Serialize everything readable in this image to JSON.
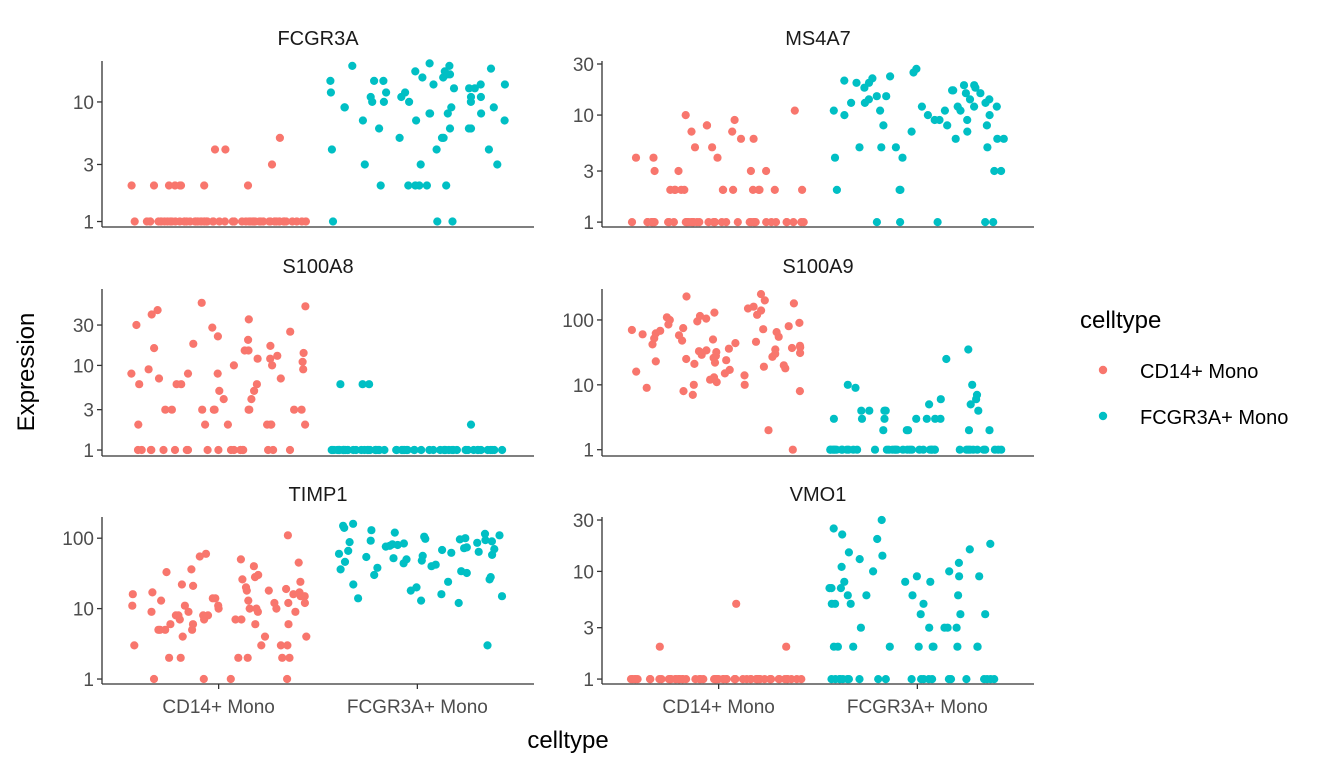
{
  "chart_data": {
    "type": "scatter",
    "subtype": "faceted jitter plot",
    "xlabel": "celltype",
    "ylabel": "Expression",
    "y_scale": "log10",
    "grid": false,
    "legend": {
      "title": "celltype",
      "position": "right",
      "entries": [
        {
          "name": "CD14+ Mono",
          "color": "#F8766D"
        },
        {
          "name": "FCGR3A+ Mono",
          "color": "#00BFC4"
        }
      ]
    },
    "categories": [
      "CD14+ Mono",
      "FCGR3A+ Mono"
    ],
    "facets": [
      {
        "title": "FCGR3A",
        "ylim": [
          0.9,
          22
        ],
        "yticks": [
          1,
          3,
          10
        ],
        "ytick_labels": [
          "1",
          "3",
          "10"
        ],
        "groups": [
          {
            "category": "CD14+ Mono",
            "values": [
              1,
              1,
              1,
              1,
              1,
              1,
              1,
              1,
              1,
              1,
              1,
              1,
              1,
              1,
              1,
              1,
              1,
              1,
              1,
              1,
              1,
              1,
              1,
              1,
              1,
              1,
              1,
              1,
              1,
              1,
              1,
              1,
              1,
              1,
              1,
              1,
              1,
              1,
              1,
              1,
              1,
              1,
              1,
              1,
              1,
              1,
              1,
              1,
              1,
              1,
              1,
              1,
              1,
              1,
              1,
              1,
              1,
              1,
              1,
              1,
              2,
              2,
              2,
              2,
              2,
              2,
              2,
              2,
              3,
              4,
              4,
              5
            ]
          },
          {
            "category": "FCGR3A+ Mono",
            "values": [
              1,
              1,
              1,
              2,
              2,
              2,
              2,
              2,
              2,
              3,
              3,
              3,
              4,
              4,
              4,
              5,
              5,
              5,
              6,
              6,
              6,
              6,
              7,
              7,
              7,
              8,
              8,
              8,
              8,
              9,
              9,
              9,
              9,
              10,
              10,
              10,
              10,
              11,
              11,
              11,
              11,
              12,
              12,
              12,
              13,
              13,
              13,
              14,
              14,
              14,
              15,
              15,
              15,
              16,
              16,
              17,
              17,
              18,
              18,
              19,
              20,
              20,
              21
            ]
          }
        ]
      },
      {
        "title": "MS4A7",
        "ylim": [
          0.9,
          32
        ],
        "yticks": [
          1,
          3,
          10,
          30
        ],
        "ytick_labels": [
          "1",
          "3",
          "10",
          "30"
        ],
        "groups": [
          {
            "category": "CD14+ Mono",
            "values": [
              1,
              1,
              1,
              1,
              1,
              1,
              1,
              1,
              1,
              1,
              1,
              1,
              1,
              1,
              1,
              1,
              1,
              1,
              1,
              1,
              1,
              1,
              1,
              1,
              1,
              1,
              1,
              1,
              1,
              1,
              1,
              1,
              1,
              1,
              1,
              1,
              1,
              1,
              1,
              1,
              1,
              2,
              2,
              2,
              2,
              2,
              2,
              2,
              2,
              2,
              2,
              2,
              2,
              2,
              3,
              3,
              3,
              3,
              4,
              4,
              4,
              5,
              5,
              6,
              6,
              7,
              7,
              8,
              8,
              9,
              10,
              11
            ]
          },
          {
            "category": "FCGR3A+ Mono",
            "values": [
              1,
              1,
              1,
              1,
              1,
              2,
              2,
              2,
              3,
              3,
              4,
              4,
              5,
              5,
              5,
              5,
              6,
              6,
              6,
              7,
              7,
              8,
              8,
              8,
              9,
              9,
              9,
              10,
              10,
              10,
              11,
              11,
              11,
              11,
              12,
              12,
              12,
              12,
              13,
              13,
              13,
              14,
              14,
              14,
              15,
              15,
              16,
              16,
              17,
              17,
              18,
              18,
              19,
              19,
              20,
              20,
              21,
              22,
              23,
              25,
              27
            ]
          }
        ]
      },
      {
        "title": "S100A8",
        "ylim": [
          0.85,
          80
        ],
        "yticks": [
          1,
          3,
          10,
          30
        ],
        "ytick_labels": [
          "1",
          "3",
          "10",
          "30"
        ],
        "groups": [
          {
            "category": "CD14+ Mono",
            "values": [
              1,
              1,
              1,
              1,
              1,
              1,
              1,
              1,
              1,
              1,
              1,
              1,
              1,
              1,
              1,
              1,
              1,
              1,
              1,
              2,
              2,
              2,
              2,
              2,
              2,
              2,
              3,
              3,
              3,
              3,
              3,
              3,
              3,
              3,
              3,
              4,
              4,
              5,
              5,
              6,
              6,
              6,
              6,
              7,
              7,
              8,
              8,
              8,
              9,
              9,
              10,
              10,
              11,
              12,
              12,
              13,
              14,
              15,
              15,
              16,
              17,
              18,
              20,
              22,
              25,
              28,
              30,
              35,
              40,
              45,
              50,
              55
            ]
          },
          {
            "category": "FCGR3A+ Mono",
            "values": [
              1,
              1,
              1,
              1,
              1,
              1,
              1,
              1,
              1,
              1,
              1,
              1,
              1,
              1,
              1,
              1,
              1,
              1,
              1,
              1,
              1,
              1,
              1,
              1,
              1,
              1,
              1,
              1,
              1,
              1,
              1,
              1,
              1,
              1,
              1,
              1,
              1,
              1,
              1,
              1,
              1,
              1,
              1,
              1,
              1,
              1,
              1,
              1,
              1,
              1,
              1,
              1,
              1,
              1,
              1,
              1,
              1,
              1,
              1,
              1,
              2,
              6,
              6,
              6
            ]
          }
        ]
      },
      {
        "title": "S100A9",
        "ylim": [
          0.8,
          300
        ],
        "yticks": [
          1,
          10,
          100
        ],
        "ytick_labels": [
          "1",
          "10",
          "100"
        ],
        "groups": [
          {
            "category": "CD14+ Mono",
            "values": [
              1,
              2,
              7,
              8,
              8,
              9,
              10,
              10,
              11,
              12,
              13,
              14,
              15,
              16,
              17,
              18,
              19,
              20,
              21,
              22,
              23,
              24,
              25,
              26,
              27,
              28,
              29,
              30,
              31,
              32,
              33,
              34,
              35,
              36,
              37,
              38,
              40,
              42,
              44,
              46,
              48,
              50,
              52,
              55,
              58,
              60,
              62,
              65,
              68,
              70,
              72,
              75,
              80,
              85,
              90,
              95,
              100,
              105,
              110,
              115,
              120,
              130,
              140,
              150,
              160,
              180,
              200,
              230,
              250
            ]
          },
          {
            "category": "FCGR3A+ Mono",
            "values": [
              1,
              1,
              1,
              1,
              1,
              1,
              1,
              1,
              1,
              1,
              1,
              1,
              1,
              1,
              1,
              1,
              1,
              1,
              1,
              1,
              1,
              1,
              1,
              1,
              1,
              1,
              1,
              1,
              1,
              1,
              1,
              1,
              1,
              1,
              1,
              1,
              1,
              1,
              1,
              1,
              1,
              2,
              2,
              2,
              2,
              2,
              3,
              3,
              3,
              3,
              3,
              3,
              3,
              4,
              4,
              4,
              4,
              4,
              5,
              5,
              6,
              6,
              7,
              9,
              10,
              10,
              25,
              35
            ]
          }
        ]
      },
      {
        "title": "TIMP1",
        "ylim": [
          0.85,
          200
        ],
        "yticks": [
          1,
          10,
          100
        ],
        "ytick_labels": [
          "1",
          "10",
          "100"
        ],
        "groups": [
          {
            "category": "CD14+ Mono",
            "values": [
              1,
              1,
              1,
              1,
              2,
              2,
              2,
              2,
              2,
              2,
              3,
              3,
              3,
              3,
              4,
              4,
              4,
              5,
              5,
              5,
              5,
              6,
              6,
              6,
              6,
              7,
              7,
              7,
              7,
              8,
              8,
              8,
              8,
              9,
              9,
              9,
              9,
              10,
              10,
              10,
              10,
              11,
              11,
              11,
              12,
              12,
              12,
              13,
              13,
              14,
              14,
              15,
              15,
              16,
              16,
              17,
              17,
              18,
              18,
              19,
              20,
              21,
              22,
              24,
              26,
              28,
              30,
              33,
              36,
              40,
              45,
              50,
              55,
              60,
              110
            ]
          },
          {
            "category": "FCGR3A+ Mono",
            "values": [
              3,
              12,
              13,
              14,
              15,
              16,
              18,
              20,
              22,
              24,
              26,
              28,
              30,
              32,
              34,
              36,
              38,
              40,
              42,
              44,
              46,
              48,
              50,
              52,
              54,
              56,
              58,
              60,
              62,
              64,
              66,
              68,
              70,
              72,
              74,
              76,
              78,
              80,
              82,
              84,
              86,
              88,
              90,
              92,
              94,
              96,
              98,
              100,
              105,
              110,
              115,
              120,
              130,
              140,
              150,
              160
            ]
          }
        ]
      },
      {
        "title": "VMO1",
        "ylim": [
          0.9,
          32
        ],
        "yticks": [
          1,
          3,
          10,
          30
        ],
        "ytick_labels": [
          "1",
          "3",
          "10",
          "30"
        ],
        "groups": [
          {
            "category": "CD14+ Mono",
            "values": [
              1,
              1,
              1,
              1,
              1,
              1,
              1,
              1,
              1,
              1,
              1,
              1,
              1,
              1,
              1,
              1,
              1,
              1,
              1,
              1,
              1,
              1,
              1,
              1,
              1,
              1,
              1,
              1,
              1,
              1,
              1,
              1,
              1,
              1,
              1,
              1,
              1,
              1,
              1,
              1,
              1,
              1,
              1,
              1,
              1,
              1,
              1,
              1,
              1,
              1,
              1,
              1,
              1,
              1,
              1,
              1,
              1,
              1,
              1,
              1,
              2,
              2,
              5
            ]
          },
          {
            "category": "FCGR3A+ Mono",
            "values": [
              1,
              1,
              1,
              1,
              1,
              1,
              1,
              1,
              1,
              1,
              1,
              1,
              1,
              1,
              1,
              1,
              1,
              1,
              1,
              1,
              1,
              1,
              2,
              2,
              2,
              2,
              2,
              2,
              2,
              2,
              2,
              2,
              3,
              3,
              3,
              3,
              3,
              4,
              4,
              4,
              5,
              5,
              5,
              5,
              6,
              6,
              6,
              6,
              7,
              7,
              7,
              8,
              8,
              8,
              9,
              9,
              9,
              10,
              10,
              11,
              12,
              13,
              14,
              15,
              16,
              18,
              20,
              22,
              25,
              30
            ]
          }
        ]
      }
    ]
  }
}
